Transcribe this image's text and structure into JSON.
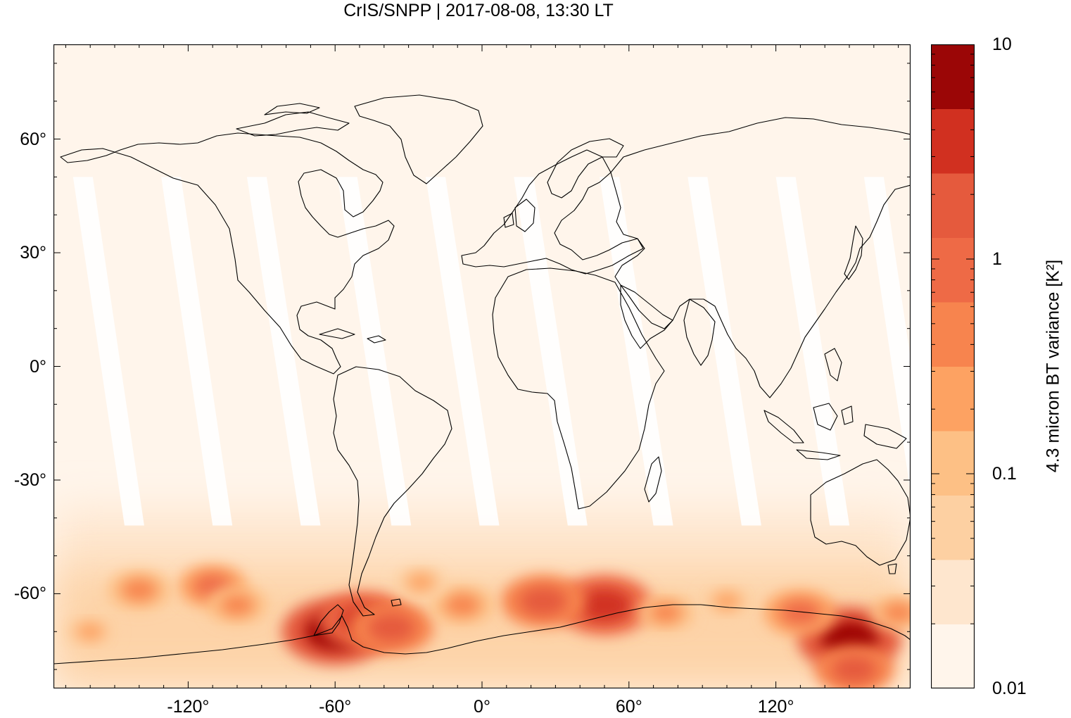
{
  "title": "CrIS/SNPP | 2017-08-08, 13:30 LT",
  "map": {
    "projection": "equirectangular",
    "lon_range": [
      -175,
      175
    ],
    "lat_range": [
      -85,
      85
    ],
    "y_ticks": [
      {
        "value": 60,
        "label": "60°"
      },
      {
        "value": 30,
        "label": "30°"
      },
      {
        "value": 0,
        "label": "0°"
      },
      {
        "value": -30,
        "label": "-30°"
      },
      {
        "value": -60,
        "label": "-60°"
      }
    ],
    "x_ticks": [
      {
        "value": -120,
        "label": "-120°"
      },
      {
        "value": -60,
        "label": "-60°"
      },
      {
        "value": 0,
        "label": "0°"
      },
      {
        "value": 60,
        "label": "60°"
      },
      {
        "value": 120,
        "label": "120°"
      }
    ],
    "background_color": "#fff5eb"
  },
  "colorbar": {
    "title": "4.3 micron BT variance [K²]",
    "scale": "log",
    "range": [
      0.01,
      10
    ],
    "labels": [
      {
        "value": 10,
        "label": "10"
      },
      {
        "value": 1,
        "label": "1"
      },
      {
        "value": 0.1,
        "label": "0.1"
      },
      {
        "value": 0.01,
        "label": "0.01"
      }
    ],
    "colors": [
      "#fff5eb",
      "#fee6ce",
      "#fdd0a2",
      "#fdc085",
      "#fda262",
      "#f7844e",
      "#ee6a46",
      "#e55a3d",
      "#d13020",
      "#9b0606"
    ]
  },
  "swath_gaps": [
    {
      "lon_top": -167,
      "lon_bottom": -146
    },
    {
      "lon_top": -131,
      "lon_bottom": -110
    },
    {
      "lon_top": -96,
      "lon_bottom": -74
    },
    {
      "lon_top": -59,
      "lon_bottom": -37
    },
    {
      "lon_top": -23,
      "lon_bottom": -1
    },
    {
      "lon_top": 13,
      "lon_bottom": 35
    },
    {
      "lon_top": 48,
      "lon_bottom": 70
    },
    {
      "lon_top": 84,
      "lon_bottom": 106
    },
    {
      "lon_top": 120,
      "lon_bottom": 142
    },
    {
      "lon_top": 156,
      "lon_bottom": 177
    }
  ],
  "hotspots": [
    {
      "lon": -60,
      "lat": -70,
      "value": 7
    },
    {
      "lon": -48,
      "lat": -67,
      "value": 3
    },
    {
      "lon": -37,
      "lat": -69,
      "value": 2
    },
    {
      "lon": 50,
      "lat": -63,
      "value": 4
    },
    {
      "lon": 25,
      "lat": -62,
      "value": 2
    },
    {
      "lon": 150,
      "lat": -72,
      "value": 6
    },
    {
      "lon": 152,
      "lat": -80,
      "value": 1.5
    },
    {
      "lon": 130,
      "lat": -65,
      "value": 1
    },
    {
      "lon": -110,
      "lat": -58,
      "value": 0.8
    },
    {
      "lon": -140,
      "lat": -59,
      "value": 0.6
    },
    {
      "lon": -100,
      "lat": -63,
      "value": 0.5
    },
    {
      "lon": -8,
      "lat": -63,
      "value": 0.6
    },
    {
      "lon": -25,
      "lat": -57,
      "value": 0.3
    },
    {
      "lon": 75,
      "lat": -65,
      "value": 0.4
    },
    {
      "lon": 100,
      "lat": -62,
      "value": 0.3
    },
    {
      "lon": -160,
      "lat": -70,
      "value": 0.3
    },
    {
      "lon": 170,
      "lat": -65,
      "value": 0.4
    }
  ]
}
